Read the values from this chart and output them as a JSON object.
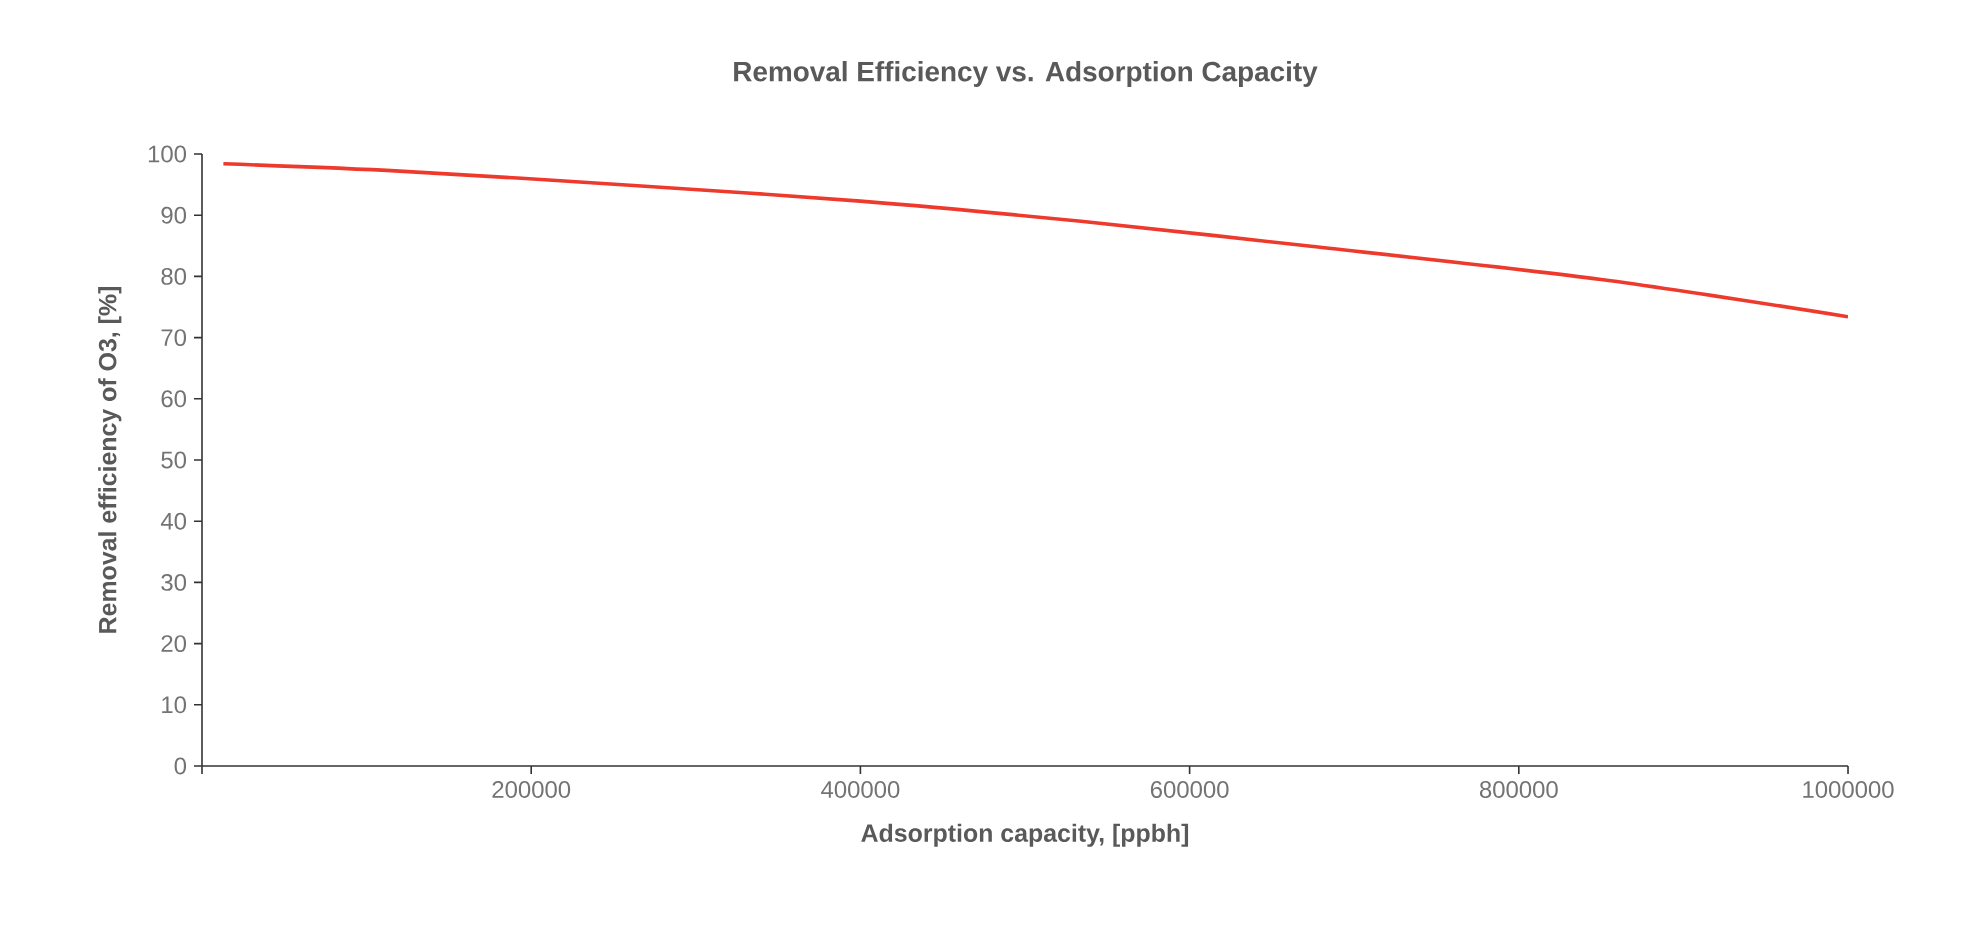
{
  "chart_data": {
    "type": "line",
    "title": "Removal Efficiency vs. Adsorption Capacity",
    "xlabel": "Adsorption capacity, [ppbh]",
    "ylabel": "Removal efficiency of O3, [%]",
    "x": [
      13000,
      120000,
      260000,
      400000,
      534000,
      671000,
      850000,
      1000000
    ],
    "series": [
      {
        "color": "#ee3a2c",
        "values": [
          98.4,
          97.2,
          94.9,
          92.3,
          89.0,
          85.0,
          79.5,
          73.4
        ]
      }
    ],
    "xlim": [
      0,
      1000000
    ],
    "ylim": [
      0,
      100
    ],
    "xticks": [
      {
        "value": 0,
        "label": null
      },
      200000,
      400000,
      600000,
      800000,
      1000000
    ],
    "yticks": [
      0,
      10,
      20,
      30,
      40,
      50,
      60,
      70,
      80,
      90,
      100
    ],
    "marker": "none",
    "line_style": "solid"
  }
}
